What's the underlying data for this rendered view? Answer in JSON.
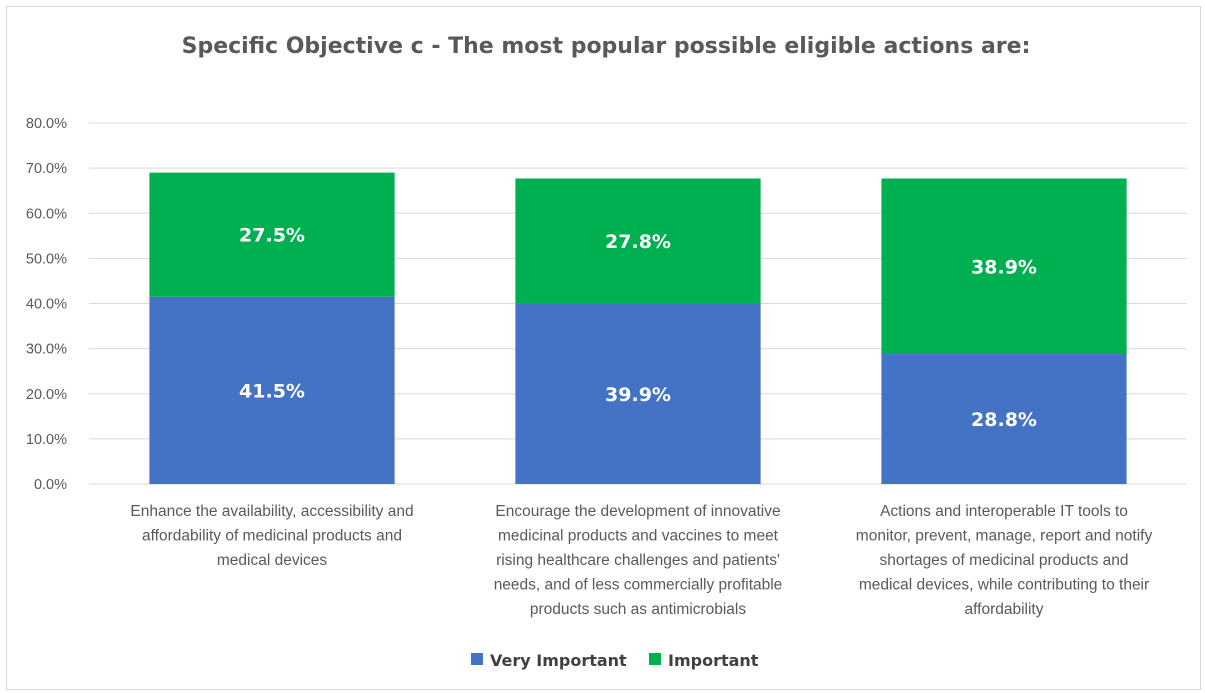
{
  "chart_data": {
    "type": "bar",
    "stacked": true,
    "title": "Specific Objective c - The most popular possible eligible actions are:",
    "categories": [
      "Enhance the availability, accessibility and affordability of medicinal products and medical devices",
      "Encourage the development of innovative medicinal products and vaccines to meet rising healthcare challenges and patients' needs, and of less commercially profitable products such as antimicrobials",
      "Actions and interoperable IT tools to monitor, prevent, manage, report and notify shortages of medicinal products and medical devices, while contributing to their affordability"
    ],
    "category_lines": [
      [
        "Enhance the availability, accessibility and",
        "affordability of medicinal products and",
        "medical devices"
      ],
      [
        "Encourage the development of innovative",
        "medicinal products and vaccines to meet",
        "rising healthcare challenges and patients'",
        "needs, and of less commercially profitable",
        "products such as antimicrobials"
      ],
      [
        "Actions and interoperable IT tools to",
        "monitor, prevent, manage, report and notify",
        "shortages of medicinal products and",
        "medical devices, while contributing to their",
        "affordability"
      ]
    ],
    "series": [
      {
        "name": "Very Important",
        "color": "#4472c4",
        "values": [
          41.5,
          39.9,
          28.8
        ],
        "labels": [
          "41.5%",
          "39.9%",
          "28.8%"
        ]
      },
      {
        "name": "Important",
        "color": "#00b050",
        "values": [
          27.5,
          27.8,
          38.9
        ],
        "labels": [
          "27.5%",
          "27.8%",
          "38.9%"
        ]
      }
    ],
    "ylim": [
      0,
      80
    ],
    "yticks": [
      "0.0%",
      "10.0%",
      "20.0%",
      "30.0%",
      "40.0%",
      "50.0%",
      "60.0%",
      "70.0%",
      "80.0%"
    ],
    "xlabel": "",
    "ylabel": "",
    "grid": true,
    "legend_position": "bottom"
  }
}
